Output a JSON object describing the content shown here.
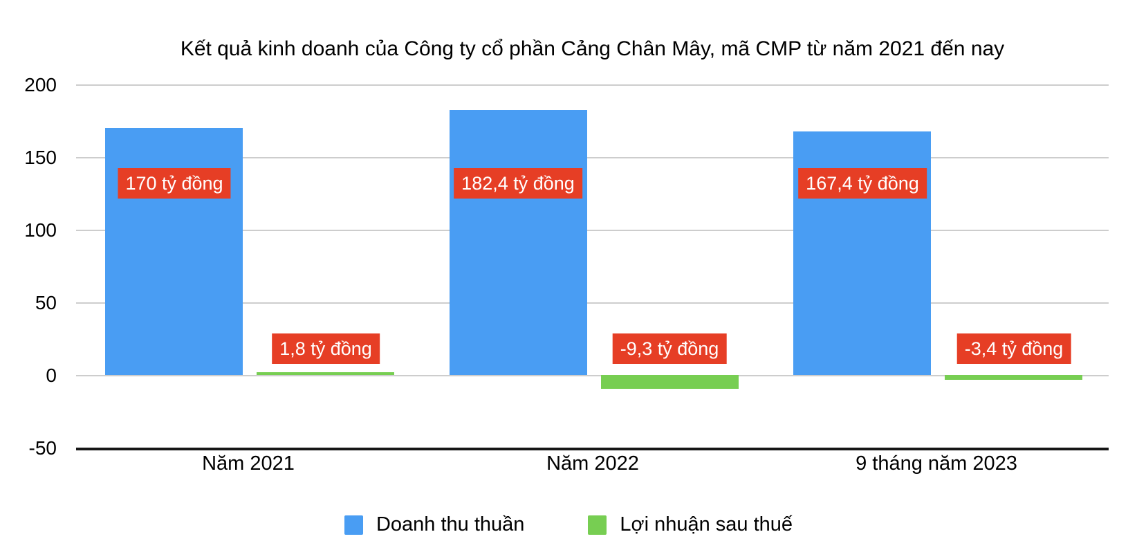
{
  "title": "Kết quả kinh doanh của Công ty cổ phần Cảng Chân Mây, mã CMP từ năm 2021 đến nay",
  "colors": {
    "revenue_bar": "#499df3",
    "profit_bar": "#77ce52",
    "value_label_bg": "#e63e25",
    "value_label_text": "#ffffff",
    "gridline": "#cdcdcd",
    "axis_line": "#161616",
    "text": "#000000"
  },
  "chart_data": {
    "type": "bar",
    "title": "Kết quả kinh doanh của Công ty cổ phần Cảng Chân Mây, mã CMP từ năm 2021 đến nay",
    "categories": [
      "Năm 2021",
      "Năm 2022",
      "9 tháng năm 2023"
    ],
    "series": [
      {
        "name": "Doanh thu thuần",
        "color": "#499df3",
        "values": [
          170,
          182.4,
          167.4
        ],
        "labels": [
          "170 tỷ đồng",
          "182,4 tỷ đồng",
          "167,4 tỷ đồng"
        ]
      },
      {
        "name": "Lợi nhuận sau thuế",
        "color": "#77ce52",
        "values": [
          1.8,
          -9.3,
          -3.4
        ],
        "labels": [
          "1,8 tỷ đồng",
          "-9,3 tỷ đồng",
          "-3,4 tỷ đồng"
        ]
      }
    ],
    "unit": "tỷ đồng",
    "ylim": [
      -50,
      200
    ],
    "yticks": [
      200,
      150,
      100,
      50,
      0,
      -50
    ],
    "grid": true,
    "legend_position": "bottom"
  }
}
